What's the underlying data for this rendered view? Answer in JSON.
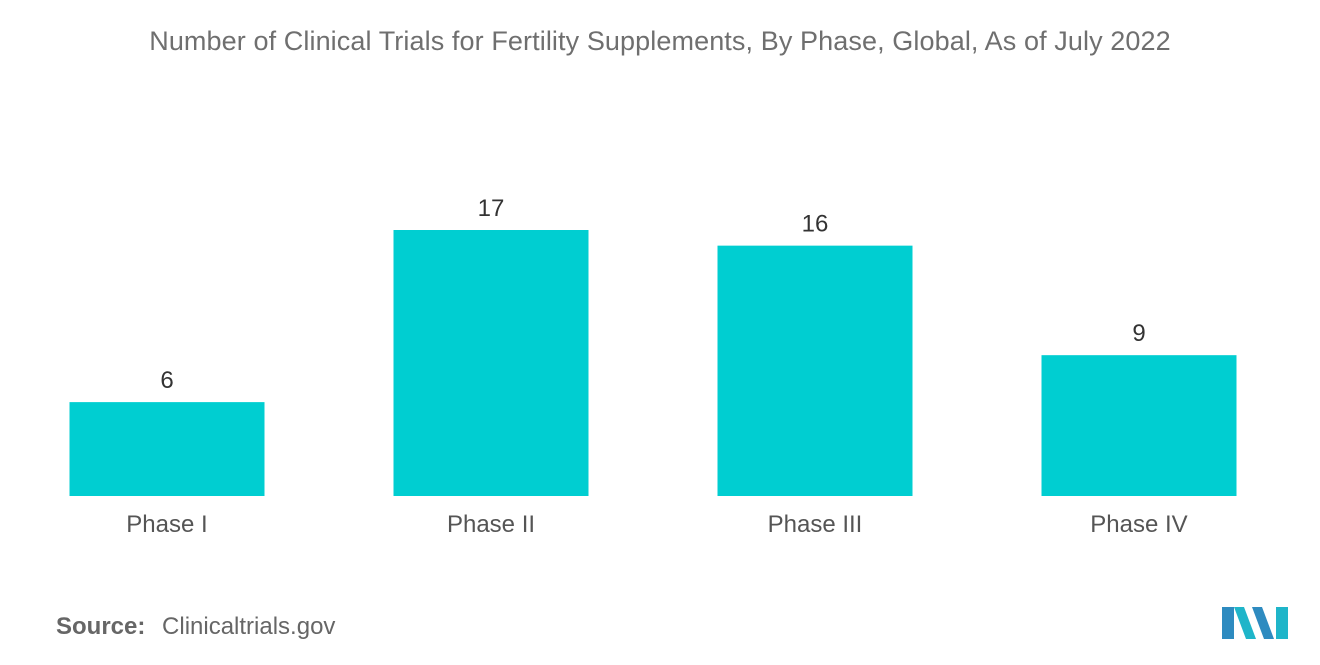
{
  "chart_data": {
    "type": "bar",
    "title": "Number of Clinical Trials for Fertility Supplements, By Phase, Global, As of July 2022",
    "categories": [
      "Phase I",
      "Phase II",
      "Phase III",
      "Phase IV"
    ],
    "values": [
      6,
      17,
      16,
      9
    ],
    "xlabel": "",
    "ylabel": "",
    "ylim": [
      0,
      17
    ],
    "grid": false,
    "bar_color": "#00CED1",
    "data_labels": true
  },
  "source": {
    "label": "Source:",
    "value": "Clinicaltrials.gov"
  },
  "logo": {
    "icon": "mordor-intelligence-logo",
    "colors": [
      "#2E8BC0",
      "#1FB5C9"
    ]
  }
}
